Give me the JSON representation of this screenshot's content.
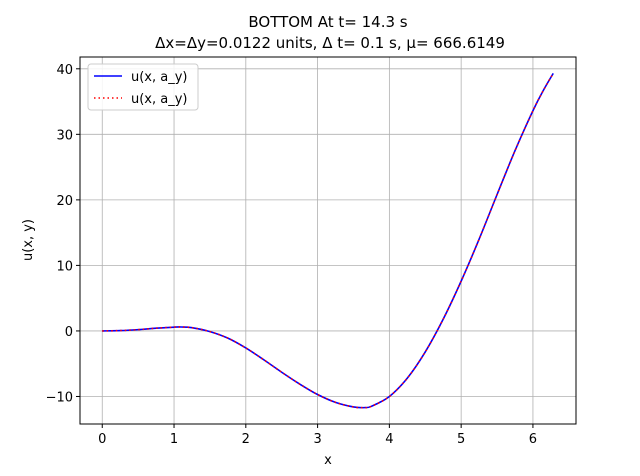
{
  "chart_data": {
    "type": "line",
    "title_line1": "BOTTOM At t= 14.3 s",
    "title_line2": "Δx=Δy=0.0122 units, Δ t= 0.1 s, μ= 666.6149",
    "xlabel": "x",
    "ylabel": "u(x, y)",
    "xlim": [
      -0.31,
      6.6
    ],
    "ylim": [
      -14.2,
      41.8
    ],
    "xticks": [
      0,
      1,
      2,
      3,
      4,
      5,
      6
    ],
    "yticks": [
      -10,
      0,
      10,
      20,
      30,
      40
    ],
    "ytick_labels": [
      "−10",
      "0",
      "10",
      "20",
      "30",
      "40"
    ],
    "grid": true,
    "legend_position": "top-left",
    "x": [
      0.0,
      0.25,
      0.5,
      0.75,
      1.0,
      1.1,
      1.25,
      1.5,
      1.75,
      2.0,
      2.25,
      2.5,
      2.75,
      3.0,
      3.25,
      3.5,
      3.65,
      3.75,
      4.0,
      4.25,
      4.5,
      4.75,
      5.0,
      5.25,
      5.5,
      5.75,
      6.0,
      6.15,
      6.283
    ],
    "series": [
      {
        "name": "u(x, a_y)",
        "color": "#0000ff",
        "style": "solid",
        "values": [
          0.0,
          0.05,
          0.2,
          0.42,
          0.58,
          0.6,
          0.5,
          -0.1,
          -1.1,
          -2.6,
          -4.4,
          -6.3,
          -8.1,
          -9.7,
          -10.9,
          -11.6,
          -11.7,
          -11.5,
          -10.0,
          -7.2,
          -3.2,
          1.8,
          7.6,
          14.0,
          20.8,
          27.5,
          33.6,
          36.8,
          39.3
        ]
      },
      {
        "name": "u(x, a_y)",
        "color": "#ff0000",
        "style": "dotted",
        "values": [
          0.0,
          0.05,
          0.2,
          0.42,
          0.58,
          0.6,
          0.5,
          -0.1,
          -1.1,
          -2.6,
          -4.4,
          -6.3,
          -8.1,
          -9.7,
          -10.9,
          -11.6,
          -11.7,
          -11.5,
          -10.0,
          -7.2,
          -3.2,
          1.8,
          7.6,
          14.0,
          20.8,
          27.5,
          33.6,
          36.8,
          39.3
        ]
      }
    ]
  }
}
